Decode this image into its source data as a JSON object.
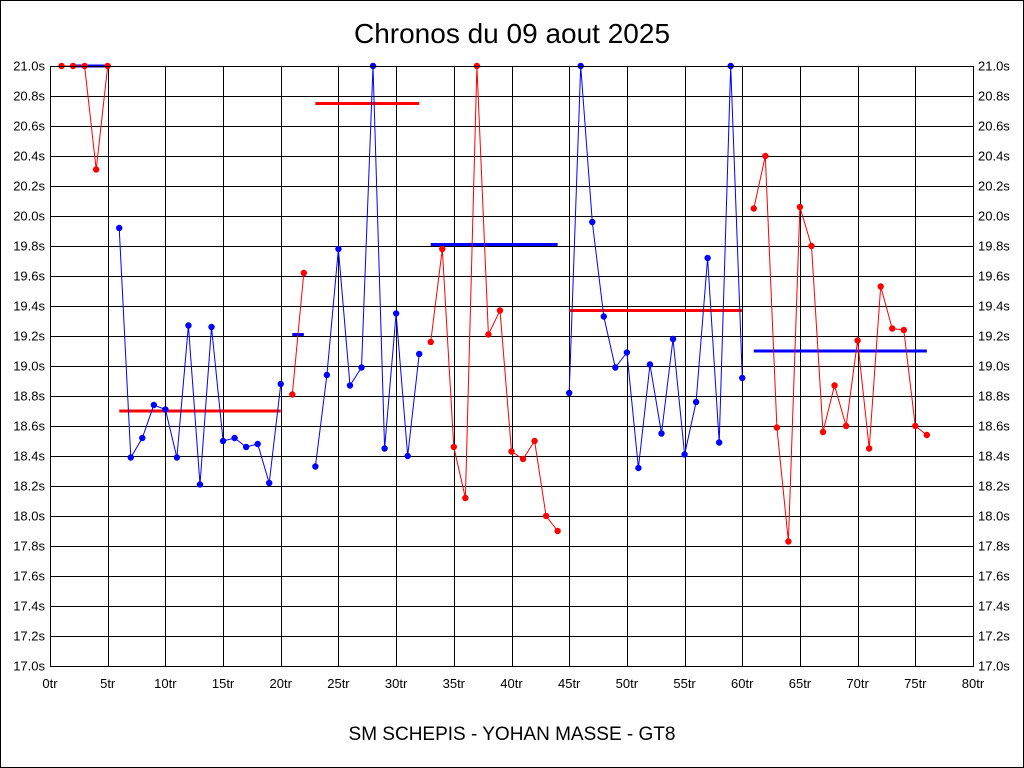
{
  "chart_data": {
    "type": "line",
    "title": "Chronos du 09 aout 2025",
    "footer": "SM SCHEPIS - YOHAN MASSE - GT8",
    "x_ticks": [
      "0tr",
      "5tr",
      "10tr",
      "15tr",
      "20tr",
      "25tr",
      "30tr",
      "35tr",
      "40tr",
      "45tr",
      "50tr",
      "55tr",
      "60tr",
      "65tr",
      "70tr",
      "75tr",
      "80tr"
    ],
    "y_ticks": [
      "17.0s",
      "17.2s",
      "17.4s",
      "17.6s",
      "17.8s",
      "18.0s",
      "18.2s",
      "18.4s",
      "18.6s",
      "18.8s",
      "19.0s",
      "19.2s",
      "19.4s",
      "19.6s",
      "19.8s",
      "20.0s",
      "20.2s",
      "20.4s",
      "20.6s",
      "20.8s",
      "21.0s"
    ],
    "xlim": [
      0,
      80
    ],
    "ylim": [
      17.0,
      21.0
    ],
    "grid": true,
    "colors": {
      "red": "#ff0000",
      "blue": "#0000ff",
      "frame": "#000000"
    },
    "stints": [
      {
        "color": "red",
        "x": [
          1,
          2,
          3,
          4,
          5
        ],
        "y": [
          21.0,
          21.0,
          21.0,
          20.31,
          21.0
        ]
      },
      {
        "color": "blue",
        "x": [
          6,
          7,
          8,
          9,
          10,
          11,
          12,
          13,
          14,
          15,
          16,
          17,
          18,
          19,
          20
        ],
        "y": [
          19.92,
          18.39,
          18.52,
          18.74,
          18.71,
          18.39,
          19.27,
          18.21,
          19.26,
          18.5,
          18.52,
          18.46,
          18.48,
          18.22,
          18.88
        ]
      },
      {
        "color": "red",
        "x": [
          21,
          22
        ],
        "y": [
          18.81,
          19.62
        ]
      },
      {
        "color": "blue",
        "x": [
          23,
          24,
          25,
          26,
          27,
          28,
          29,
          30,
          31,
          32
        ],
        "y": [
          18.33,
          18.94,
          19.78,
          18.87,
          18.99,
          21.0,
          18.45,
          19.35,
          18.4,
          19.08
        ]
      },
      {
        "color": "red",
        "x": [
          33,
          34,
          35,
          36,
          37,
          38,
          39,
          40,
          41,
          42,
          43,
          44
        ],
        "y": [
          19.16,
          19.78,
          18.46,
          18.12,
          21.0,
          19.21,
          19.37,
          18.43,
          18.38,
          18.5,
          18.0,
          17.9
        ]
      },
      {
        "color": "blue",
        "x": [
          45,
          46,
          47,
          48,
          49,
          50,
          51,
          52,
          53,
          54,
          55,
          56,
          57,
          58,
          59,
          60
        ],
        "y": [
          18.82,
          21.0,
          19.96,
          19.33,
          18.99,
          19.09,
          18.32,
          19.01,
          18.55,
          19.18,
          18.41,
          18.76,
          19.72,
          18.49,
          21.0,
          18.92
        ]
      },
      {
        "color": "red",
        "x": [
          61,
          62,
          63,
          64,
          65,
          66,
          67,
          68,
          69,
          70,
          71,
          72,
          73,
          74,
          75,
          76
        ],
        "y": [
          20.05,
          20.4,
          18.59,
          17.83,
          20.06,
          19.8,
          18.56,
          18.87,
          18.6,
          19.17,
          18.45,
          19.53,
          19.25,
          19.24,
          18.6,
          18.54
        ]
      }
    ],
    "averages": [
      {
        "color": "blue",
        "x": [
          2,
          5
        ],
        "y": 21.0
      },
      {
        "color": "red",
        "x": [
          6,
          20
        ],
        "y": 18.7
      },
      {
        "color": "blue",
        "x": [
          21,
          22
        ],
        "y": 19.21
      },
      {
        "color": "red",
        "x": [
          23,
          32
        ],
        "y": 20.75
      },
      {
        "color": "blue",
        "x": [
          33,
          44
        ],
        "y": 19.81
      },
      {
        "color": "red",
        "x": [
          45,
          60
        ],
        "y": 19.37
      },
      {
        "color": "blue",
        "x": [
          61,
          76
        ],
        "y": 19.1
      }
    ]
  }
}
